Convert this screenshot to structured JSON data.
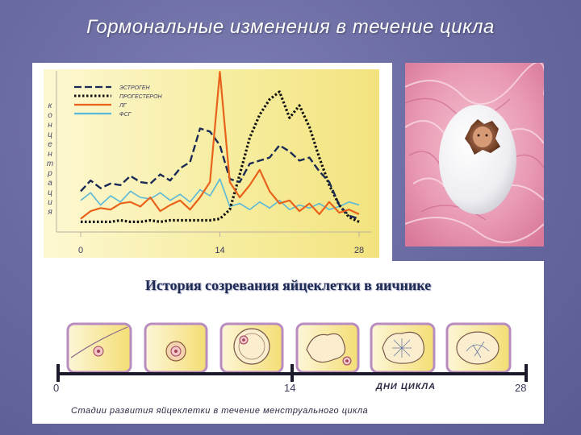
{
  "slide": {
    "title": "Гормональные изменения в течение цикла"
  },
  "chart_data": {
    "type": "line",
    "ylabel": "концентрация",
    "x_ticks": [
      "0",
      "14",
      "28"
    ],
    "x_range": [
      0,
      28
    ],
    "y_range": [
      0,
      10
    ],
    "legend_placement": "top-left",
    "series": [
      {
        "name": "ЭСТРОГЕН",
        "style": "dashed",
        "color": "#1a2a55",
        "x": [
          0,
          1,
          2,
          3,
          4,
          5,
          6,
          7,
          8,
          9,
          10,
          11,
          12,
          13,
          14,
          15,
          16,
          17,
          18,
          19,
          20,
          21,
          22,
          23,
          24,
          25,
          26,
          27,
          28
        ],
        "values": [
          2.4,
          3.1,
          2.6,
          2.9,
          2.8,
          3.4,
          3.0,
          2.9,
          3.5,
          3.1,
          3.9,
          4.3,
          6.5,
          6.3,
          5.4,
          3.2,
          3.0,
          4.2,
          4.4,
          4.6,
          5.4,
          5.0,
          4.4,
          4.6,
          3.7,
          3.0,
          1.5,
          0.8,
          0.6
        ]
      },
      {
        "name": "ПРОГЕСТЕРОН",
        "style": "dotted",
        "color": "#111111",
        "x": [
          0,
          1,
          2,
          3,
          4,
          5,
          6,
          7,
          8,
          9,
          10,
          11,
          12,
          13,
          14,
          15,
          16,
          17,
          18,
          19,
          20,
          21,
          22,
          23,
          24,
          25,
          26,
          27,
          28
        ],
        "values": [
          0.4,
          0.4,
          0.4,
          0.4,
          0.5,
          0.4,
          0.4,
          0.5,
          0.4,
          0.5,
          0.5,
          0.5,
          0.5,
          0.5,
          0.6,
          1.2,
          3.5,
          5.9,
          7.4,
          8.4,
          8.9,
          7.2,
          8.0,
          6.6,
          4.6,
          2.8,
          1.5,
          0.7,
          0.4
        ]
      },
      {
        "name": "ЛГ",
        "style": "solid",
        "color": "#e8621a",
        "x": [
          0,
          1,
          2,
          3,
          4,
          5,
          6,
          7,
          8,
          9,
          10,
          11,
          12,
          13,
          14,
          15,
          16,
          17,
          18,
          19,
          20,
          21,
          22,
          23,
          24,
          25,
          26,
          27,
          28
        ],
        "values": [
          0.6,
          1.1,
          1.3,
          1.2,
          1.6,
          1.7,
          1.4,
          2.0,
          1.1,
          1.5,
          1.8,
          1.2,
          2.0,
          3.0,
          10.2,
          3.0,
          2.0,
          2.8,
          3.8,
          2.4,
          1.6,
          1.8,
          1.1,
          1.6,
          0.9,
          1.7,
          1.0,
          1.2,
          0.9
        ]
      },
      {
        "name": "ФСГ",
        "style": "solid",
        "color": "#5ab8d8",
        "x": [
          0,
          1,
          2,
          3,
          4,
          5,
          6,
          7,
          8,
          9,
          10,
          11,
          12,
          13,
          14,
          15,
          16,
          17,
          18,
          19,
          20,
          21,
          22,
          23,
          24,
          25,
          26,
          27,
          28
        ],
        "values": [
          1.8,
          2.3,
          1.5,
          2.1,
          1.7,
          2.4,
          2.0,
          1.9,
          2.3,
          1.8,
          2.2,
          1.7,
          2.5,
          2.1,
          3.2,
          1.4,
          1.6,
          1.2,
          1.7,
          1.3,
          1.8,
          1.2,
          1.5,
          1.3,
          1.6,
          1.2,
          1.4,
          1.7,
          1.5
        ]
      }
    ]
  },
  "oocyte": {
    "title": "История созревания яйцеклетки в яичнике",
    "axis_ticks": [
      "0",
      "14",
      "28"
    ],
    "days_label": "ДНИ ЦИКЛА",
    "caption": "Стадии развития яйцеклетки в течение менструального цикла",
    "stage_count": 6
  },
  "colors": {
    "background": "#6b6ca3",
    "chart_background": "#f7f0a8",
    "stage_border": "#c8a2c8",
    "photo_pink": "#e79ab3"
  }
}
